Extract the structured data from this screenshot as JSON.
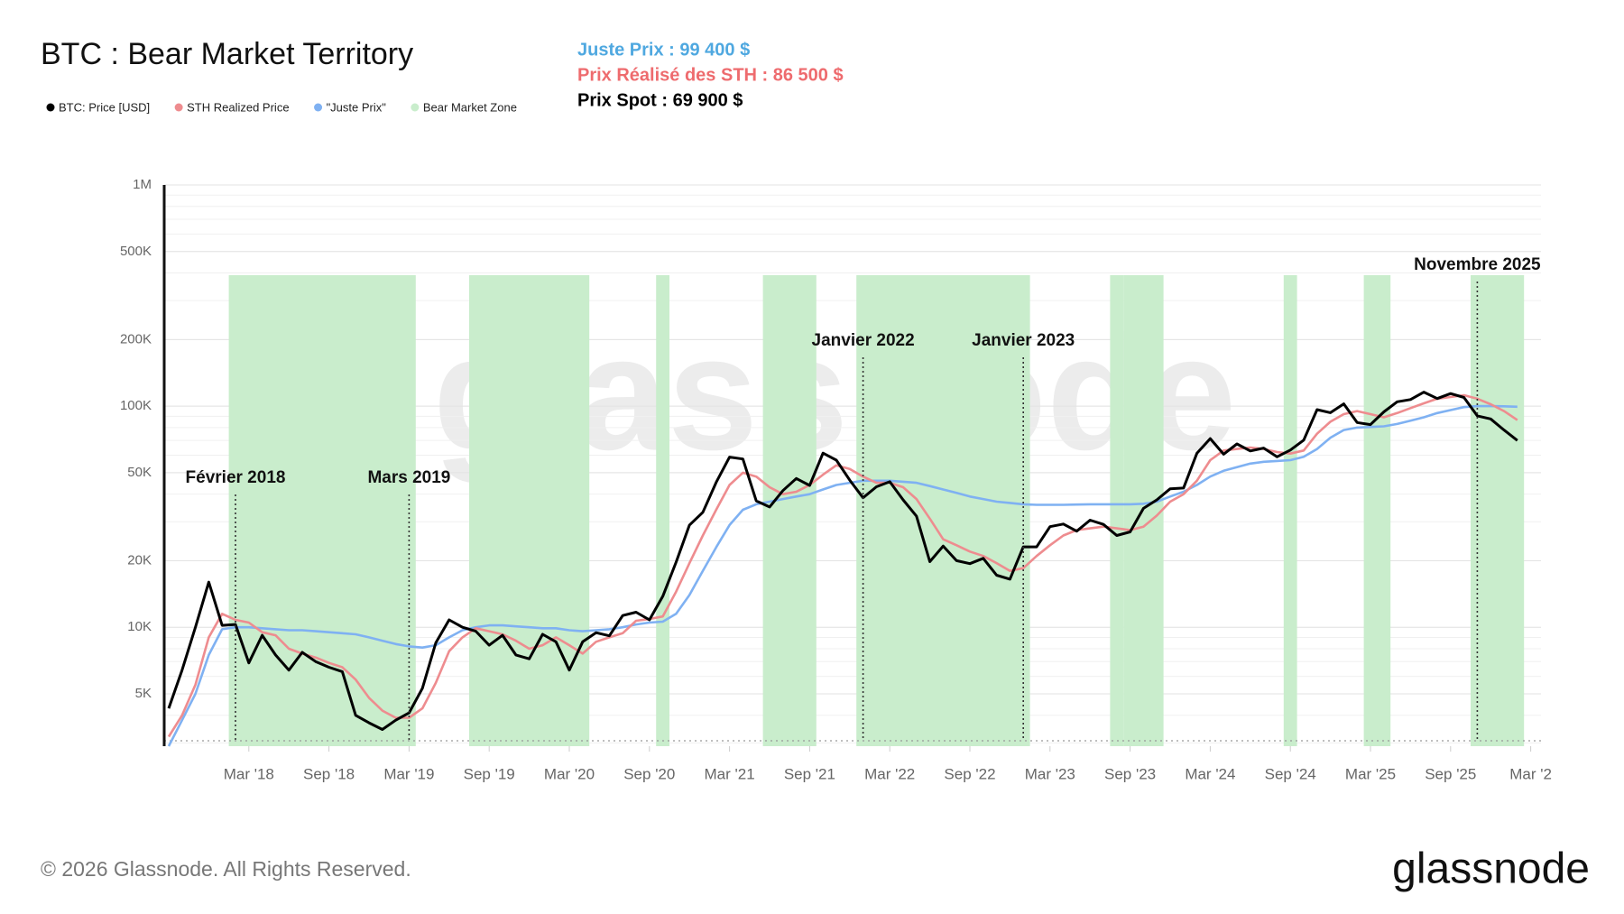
{
  "chart_data": {
    "type": "line",
    "title": "BTC : Bear Market Territory",
    "stats": [
      {
        "text": "Juste Prix : 99 400 $",
        "color": "#4fa8e0"
      },
      {
        "text": "Prix Réalisé des STH : 86 500 $",
        "color": "#ee6b6e"
      },
      {
        "text": "Prix Spot : 69 900 $",
        "color": "#000000"
      }
    ],
    "log_scale": true,
    "grid": true,
    "ylim": [
      2900,
      1000000
    ],
    "yticks": [
      {
        "value": 5000,
        "label": "5K"
      },
      {
        "value": 10000,
        "label": "10K"
      },
      {
        "value": 20000,
        "label": "20K"
      },
      {
        "value": 50000,
        "label": "50K"
      },
      {
        "value": 100000,
        "label": "100K"
      },
      {
        "value": 200000,
        "label": "200K"
      },
      {
        "value": 500000,
        "label": "500K"
      },
      {
        "value": 1000000,
        "label": "1M"
      }
    ],
    "xticks": [
      {
        "value": "2018-03",
        "label": "Mar '18"
      },
      {
        "value": "2018-09",
        "label": "Sep '18"
      },
      {
        "value": "2019-03",
        "label": "Mar '19"
      },
      {
        "value": "2019-09",
        "label": "Sep '19"
      },
      {
        "value": "2020-03",
        "label": "Mar '20"
      },
      {
        "value": "2020-09",
        "label": "Sep '20"
      },
      {
        "value": "2021-03",
        "label": "Mar '21"
      },
      {
        "value": "2021-09",
        "label": "Sep '21"
      },
      {
        "value": "2022-03",
        "label": "Mar '22"
      },
      {
        "value": "2022-09",
        "label": "Sep '22"
      },
      {
        "value": "2023-03",
        "label": "Mar '23"
      },
      {
        "value": "2023-09",
        "label": "Sep '23"
      },
      {
        "value": "2024-03",
        "label": "Mar '24"
      },
      {
        "value": "2024-09",
        "label": "Sep '24"
      },
      {
        "value": "2025-03",
        "label": "Mar '25"
      },
      {
        "value": "2025-09",
        "label": "Sep '25"
      },
      {
        "value": "2026-03",
        "label": "Mar '2"
      }
    ],
    "x": [
      "2017-09",
      "2017-10",
      "2017-11",
      "2017-12",
      "2018-01",
      "2018-02",
      "2018-03",
      "2018-04",
      "2018-05",
      "2018-06",
      "2018-07",
      "2018-08",
      "2018-09",
      "2018-10",
      "2018-11",
      "2018-12",
      "2019-01",
      "2019-02",
      "2019-03",
      "2019-04",
      "2019-05",
      "2019-06",
      "2019-07",
      "2019-08",
      "2019-09",
      "2019-10",
      "2019-11",
      "2019-12",
      "2020-01",
      "2020-02",
      "2020-03",
      "2020-04",
      "2020-05",
      "2020-06",
      "2020-07",
      "2020-08",
      "2020-09",
      "2020-10",
      "2020-11",
      "2020-12",
      "2021-01",
      "2021-02",
      "2021-03",
      "2021-04",
      "2021-05",
      "2021-06",
      "2021-07",
      "2021-08",
      "2021-09",
      "2021-10",
      "2021-11",
      "2021-12",
      "2022-01",
      "2022-02",
      "2022-03",
      "2022-04",
      "2022-05",
      "2022-06",
      "2022-07",
      "2022-08",
      "2022-09",
      "2022-10",
      "2022-11",
      "2022-12",
      "2023-01",
      "2023-02",
      "2023-03",
      "2023-04",
      "2023-05",
      "2023-06",
      "2023-07",
      "2023-08",
      "2023-09",
      "2023-10",
      "2023-11",
      "2023-12",
      "2024-01",
      "2024-02",
      "2024-03",
      "2024-04",
      "2024-05",
      "2024-06",
      "2024-07",
      "2024-08",
      "2024-09",
      "2024-10",
      "2024-11",
      "2024-12",
      "2025-01",
      "2025-02",
      "2025-03",
      "2025-04",
      "2025-05",
      "2025-06",
      "2025-07",
      "2025-08",
      "2025-09",
      "2025-10",
      "2025-11",
      "2025-12",
      "2026-01",
      "2026-02"
    ],
    "series": [
      {
        "name": "BTC: Price [USD]",
        "color": "#000000",
        "values": [
          4300,
          6400,
          10000,
          16000,
          10200,
          10300,
          6900,
          9200,
          7500,
          6400,
          7700,
          7000,
          6600,
          6300,
          4000,
          3700,
          3450,
          3800,
          4100,
          5300,
          8500,
          10800,
          10000,
          9600,
          8300,
          9200,
          7500,
          7200,
          9300,
          8600,
          6400,
          8600,
          9450,
          9150,
          11300,
          11700,
          10800,
          13800,
          19700,
          29000,
          33100,
          45200,
          58800,
          57700,
          37300,
          35000,
          41500,
          47100,
          43800,
          61300,
          57000,
          46300,
          38500,
          43200,
          45500,
          37700,
          31800,
          19800,
          23300,
          20000,
          19400,
          20500,
          17200,
          16500,
          23100,
          23100,
          28500,
          29300,
          27200,
          30500,
          29200,
          26000,
          27000,
          34500,
          37700,
          42300,
          42600,
          61200,
          71300,
          60600,
          67500,
          62700,
          64600,
          59000,
          63300,
          70200,
          96400,
          93400,
          102400,
          84300,
          82500,
          94200,
          104600,
          107100,
          115700,
          108200,
          114000,
          109500,
          90400,
          87500,
          78000,
          69900
        ]
      },
      {
        "name": "STH Realized Price",
        "color": "#ee8c8f",
        "values": [
          3200,
          4000,
          5500,
          9000,
          11500,
          10800,
          10500,
          9500,
          9200,
          8000,
          7600,
          7300,
          6900,
          6600,
          5800,
          4800,
          4200,
          3900,
          3900,
          4300,
          5600,
          7800,
          9000,
          9900,
          9600,
          9300,
          8700,
          8000,
          8300,
          9000,
          8300,
          7600,
          8600,
          9000,
          9400,
          10700,
          10900,
          11200,
          14500,
          19500,
          26000,
          34000,
          44000,
          50000,
          48000,
          43000,
          40000,
          41000,
          44000,
          49000,
          54000,
          52000,
          48000,
          45000,
          45000,
          43000,
          38000,
          31000,
          25000,
          23500,
          22000,
          21000,
          19500,
          18000,
          18500,
          21000,
          23500,
          26000,
          27500,
          28000,
          28500,
          28000,
          27500,
          28500,
          32000,
          37000,
          40000,
          46000,
          57000,
          63000,
          64000,
          65000,
          64000,
          62000,
          61000,
          63000,
          75000,
          85000,
          92000,
          95000,
          92000,
          89000,
          93000,
          98000,
          103000,
          108000,
          110000,
          112000,
          108000,
          102000,
          95000,
          86500
        ]
      },
      {
        "name": "\"Juste Prix\"",
        "color": "#7fb1f2",
        "values": [
          2900,
          3800,
          5000,
          7500,
          9800,
          10000,
          10000,
          9900,
          9800,
          9700,
          9700,
          9600,
          9500,
          9400,
          9300,
          9000,
          8700,
          8400,
          8200,
          8100,
          8300,
          9000,
          9700,
          10000,
          10200,
          10200,
          10100,
          10000,
          9900,
          9900,
          9700,
          9600,
          9700,
          9800,
          10000,
          10300,
          10500,
          10600,
          11500,
          14000,
          18000,
          23000,
          29000,
          34000,
          36000,
          37000,
          38000,
          39000,
          40000,
          42000,
          44000,
          45000,
          46000,
          46000,
          46000,
          45500,
          45000,
          43500,
          42000,
          40500,
          39000,
          38000,
          37000,
          36500,
          36000,
          35800,
          35800,
          35800,
          35900,
          36000,
          36000,
          36000,
          36000,
          36200,
          37000,
          39000,
          41000,
          44000,
          48000,
          51000,
          53000,
          55000,
          56000,
          56500,
          57000,
          59000,
          64000,
          72000,
          78000,
          80000,
          80500,
          81000,
          83000,
          86000,
          89000,
          93000,
          96000,
          99000,
          100000,
          100000,
          99800,
          99400
        ]
      }
    ],
    "zones": {
      "name": "Bear Market Zone",
      "color": "#c9edcc",
      "ranges": [
        {
          "start": "2018-02",
          "end": "2019-03"
        },
        {
          "start": "2019-08",
          "end": "2020-04"
        },
        {
          "start": "2020-10",
          "end": "2020-10"
        },
        {
          "start": "2021-06",
          "end": "2021-09"
        },
        {
          "start": "2022-01",
          "end": "2023-01"
        },
        {
          "start": "2023-08",
          "end": "2023-08"
        },
        {
          "start": "2023-09",
          "end": "2023-11"
        },
        {
          "start": "2024-09",
          "end": "2024-09"
        },
        {
          "start": "2025-03",
          "end": "2025-04"
        },
        {
          "start": "2025-11",
          "end": "2026-02"
        }
      ]
    },
    "annotations": [
      {
        "label": "Février 2018",
        "x": "2018-02"
      },
      {
        "label": "Mars 2019",
        "x": "2019-03"
      },
      {
        "label": "Janvier 2022",
        "x": "2022-01"
      },
      {
        "label": "Janvier 2023",
        "x": "2023-01"
      },
      {
        "label": "Novembre 2025",
        "x": "2025-11"
      }
    ],
    "watermark": "glassnode",
    "footer": "© 2026 Glassnode. All Rights Reserved.",
    "logo": "glassnode"
  }
}
